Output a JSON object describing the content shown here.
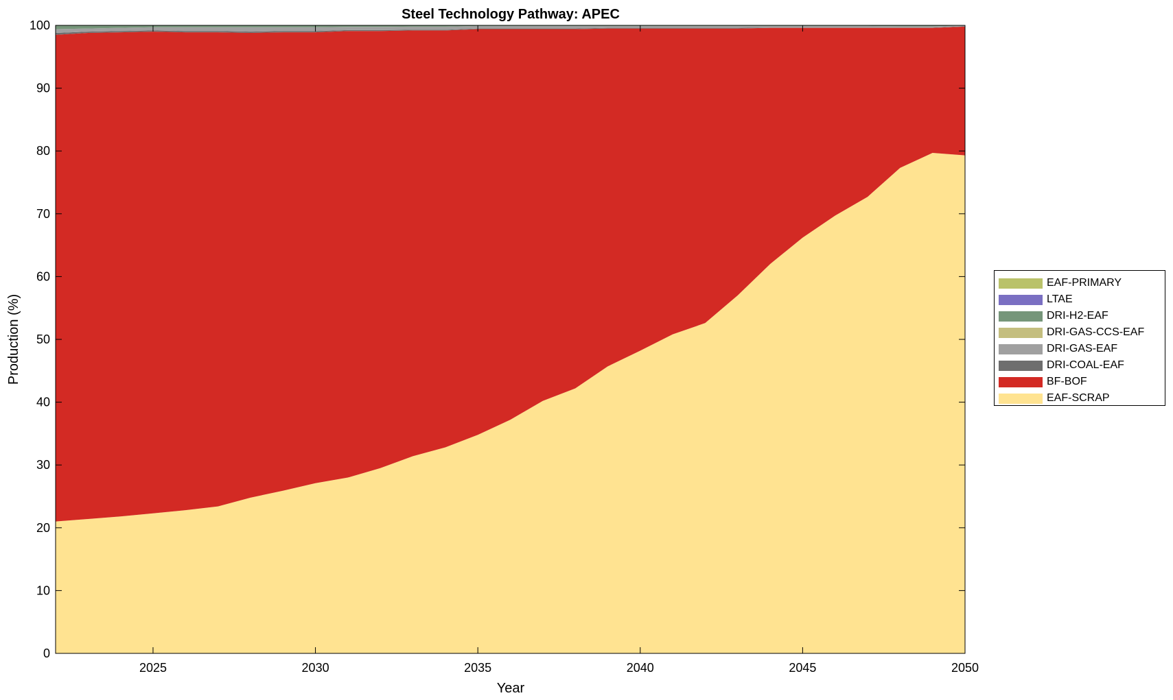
{
  "chart_data": {
    "type": "area",
    "stacked": true,
    "title": "Steel Technology Pathway: APEC",
    "xlabel": "Year",
    "ylabel": "Production (%)",
    "xlim": [
      2022,
      2050
    ],
    "ylim": [
      0,
      100
    ],
    "xticks": [
      2025,
      2030,
      2035,
      2040,
      2045,
      2050
    ],
    "yticks": [
      0,
      10,
      20,
      30,
      40,
      50,
      60,
      70,
      80,
      90,
      100
    ],
    "grid": false,
    "legend_position": "right",
    "x": [
      2022,
      2023,
      2024,
      2025,
      2026,
      2027,
      2028,
      2029,
      2030,
      2031,
      2032,
      2033,
      2034,
      2035,
      2036,
      2037,
      2038,
      2039,
      2040,
      2041,
      2042,
      2043,
      2044,
      2045,
      2046,
      2047,
      2048,
      2049,
      2050
    ],
    "series": [
      {
        "name": "EAF-SCRAP",
        "color": "#FFE391",
        "values": [
          21.0,
          21.4,
          21.8,
          22.3,
          22.8,
          23.4,
          24.8,
          25.9,
          27.1,
          28.0,
          29.5,
          31.4,
          32.8,
          34.8,
          37.2,
          40.2,
          42.2,
          45.7,
          48.2,
          50.8,
          52.6,
          57.0,
          62.0,
          66.2,
          69.7,
          72.7,
          77.3,
          79.7,
          79.3
        ]
      },
      {
        "name": "BF-BOF",
        "color": "#D32A24",
        "values": [
          77.5,
          77.4,
          77.1,
          76.7,
          76.1,
          75.5,
          74.0,
          73.0,
          71.8,
          71.1,
          69.6,
          67.8,
          66.4,
          64.6,
          62.2,
          59.2,
          57.2,
          53.8,
          51.3,
          48.7,
          46.9,
          42.5,
          37.6,
          33.4,
          29.9,
          26.9,
          22.3,
          19.9,
          20.5
        ]
      },
      {
        "name": "DRI-COAL-EAF",
        "color": "#6E6E6E",
        "values": [
          0.3,
          0.2,
          0.2,
          0.2,
          0.2,
          0.2,
          0.2,
          0.2,
          0.2,
          0.15,
          0.15,
          0.1,
          0.1,
          0.1,
          0.1,
          0.1,
          0.1,
          0.1,
          0.1,
          0.1,
          0.1,
          0.1,
          0.05,
          0.05,
          0.05,
          0.05,
          0.05,
          0.05,
          0.05
        ]
      },
      {
        "name": "DRI-GAS-EAF",
        "color": "#A0A0A0",
        "values": [
          0.6,
          0.5,
          0.5,
          0.5,
          0.6,
          0.6,
          0.7,
          0.6,
          0.6,
          0.5,
          0.5,
          0.5,
          0.5,
          0.4,
          0.4,
          0.4,
          0.4,
          0.3,
          0.3,
          0.3,
          0.3,
          0.3,
          0.25,
          0.25,
          0.25,
          0.25,
          0.2,
          0.2,
          0.1
        ]
      },
      {
        "name": "DRI-GAS-CCS-EAF",
        "color": "#C4BE7F",
        "values": [
          0,
          0,
          0,
          0,
          0,
          0,
          0,
          0,
          0,
          0,
          0,
          0,
          0,
          0,
          0,
          0,
          0,
          0,
          0,
          0,
          0,
          0,
          0,
          0,
          0,
          0,
          0,
          0,
          0
        ]
      },
      {
        "name": "DRI-H2-EAF",
        "color": "#76967A",
        "values": [
          0.6,
          0.5,
          0.4,
          0.3,
          0.3,
          0.3,
          0.3,
          0.3,
          0.3,
          0.25,
          0.25,
          0.2,
          0.2,
          0.1,
          0.1,
          0.1,
          0.1,
          0.1,
          0.1,
          0.1,
          0.1,
          0.1,
          0.1,
          0.1,
          0.1,
          0.1,
          0.15,
          0.15,
          0.05
        ]
      },
      {
        "name": "LTAE",
        "color": "#7A6FC2",
        "values": [
          0,
          0,
          0,
          0,
          0,
          0,
          0,
          0,
          0,
          0,
          0,
          0,
          0,
          0,
          0,
          0,
          0,
          0,
          0,
          0,
          0,
          0,
          0,
          0,
          0,
          0,
          0,
          0,
          0
        ]
      },
      {
        "name": "EAF-PRIMARY",
        "color": "#B9C26A",
        "values": [
          0,
          0,
          0,
          0,
          0,
          0,
          0,
          0,
          0,
          0,
          0,
          0,
          0,
          0,
          0,
          0,
          0,
          0,
          0,
          0,
          0,
          0,
          0,
          0,
          0,
          0,
          0,
          0,
          0
        ]
      }
    ],
    "legend_order": [
      "EAF-PRIMARY",
      "LTAE",
      "DRI-H2-EAF",
      "DRI-GAS-CCS-EAF",
      "DRI-GAS-EAF",
      "DRI-COAL-EAF",
      "BF-BOF",
      "EAF-SCRAP"
    ]
  }
}
